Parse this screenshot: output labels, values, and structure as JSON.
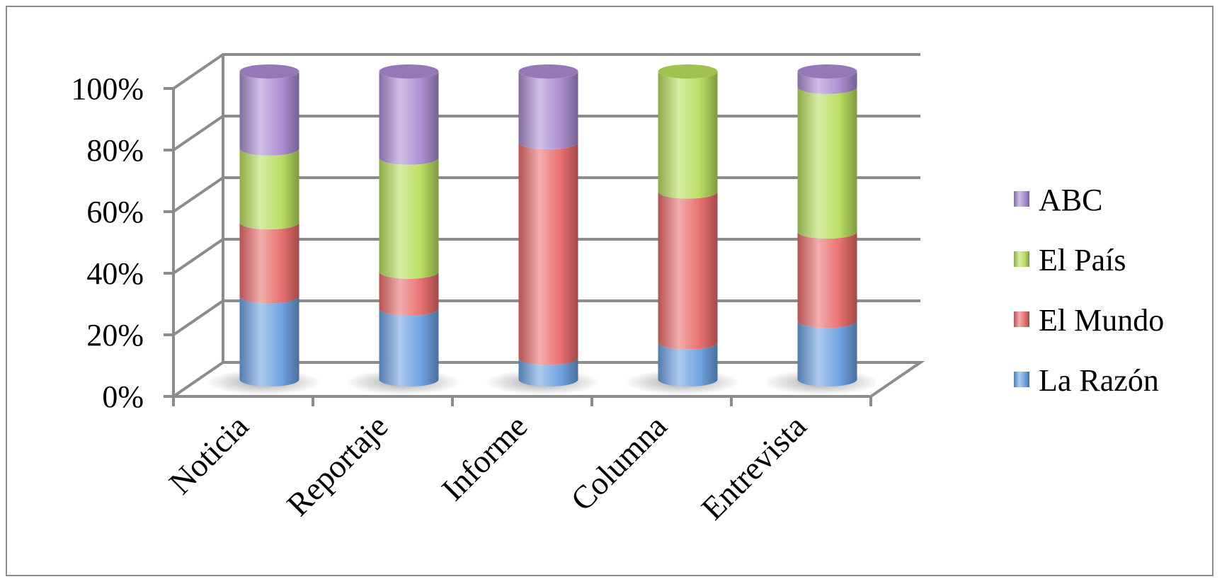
{
  "chart_data": {
    "type": "bar",
    "stacked": true,
    "percent": true,
    "style": "3d-cylinder",
    "categories": [
      "Noticia",
      "Reportaje",
      "Informe",
      "Columna",
      "Entrevista"
    ],
    "series": [
      {
        "name": "La Razón",
        "color": "#6a9fe0",
        "values": [
          27,
          23,
          7,
          12,
          19
        ]
      },
      {
        "name": "El Mundo",
        "color": "#e86a6a",
        "values": [
          24,
          12,
          70,
          49,
          29
        ]
      },
      {
        "name": "El País",
        "color": "#b6dc5c",
        "values": [
          24,
          37,
          0,
          39,
          47
        ]
      },
      {
        "name": "ABC",
        "color": "#a98ad0",
        "values": [
          25,
          28,
          23,
          0,
          5
        ]
      }
    ],
    "y_ticks": [
      "0%",
      "20%",
      "40%",
      "60%",
      "80%",
      "100%"
    ],
    "ylim": [
      0,
      100
    ],
    "grid": true,
    "legend_position": "right",
    "title": "",
    "xlabel": "",
    "ylabel": ""
  }
}
